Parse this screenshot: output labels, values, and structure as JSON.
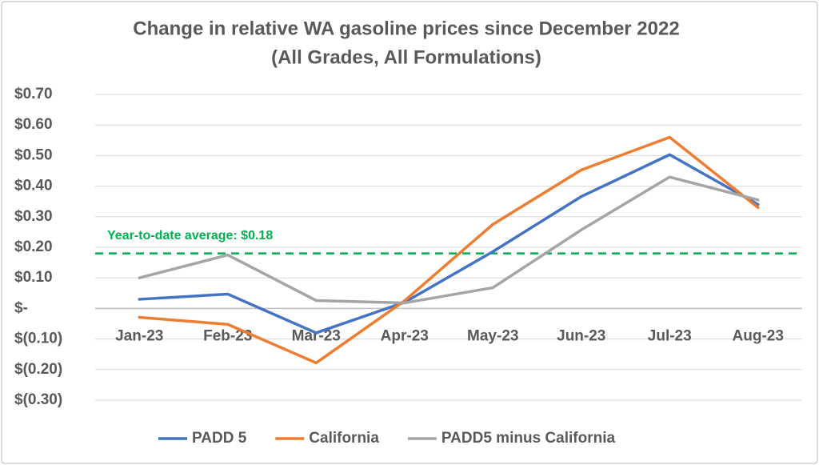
{
  "chart_data": {
    "type": "line",
    "title": "Change in relative WA gasoline prices since December 2022",
    "subtitle": "(All Grades, All Formulations)",
    "categories": [
      "Jan-23",
      "Feb-23",
      "Mar-23",
      "Apr-23",
      "May-23",
      "Jun-23",
      "Jul-23",
      "Aug-23"
    ],
    "series": [
      {
        "name": "PADD 5",
        "color": "#4472c4",
        "values": [
          0.03,
          0.047,
          -0.08,
          0.02,
          0.186,
          0.366,
          0.503,
          0.34
        ]
      },
      {
        "name": "California",
        "color": "#ed7d31",
        "values": [
          -0.029,
          -0.052,
          -0.178,
          0.025,
          0.275,
          0.453,
          0.56,
          0.33
        ]
      },
      {
        "name": "PADD5 minus California",
        "color": "#a5a5a5",
        "values": [
          0.1,
          0.175,
          0.026,
          0.018,
          0.068,
          0.257,
          0.43,
          0.355
        ]
      }
    ],
    "ylim": [
      -0.3,
      0.7
    ],
    "yticks": [
      {
        "value": -0.3,
        "label": "$(0.30)"
      },
      {
        "value": -0.2,
        "label": "$(0.20)"
      },
      {
        "value": -0.1,
        "label": "$(0.10)"
      },
      {
        "value": 0,
        "label": "$-"
      },
      {
        "value": 0.1,
        "label": "$0.10"
      },
      {
        "value": 0.2,
        "label": "$0.20"
      },
      {
        "value": 0.3,
        "label": "$0.30"
      },
      {
        "value": 0.4,
        "label": "$0.40"
      },
      {
        "value": 0.5,
        "label": "$0.50"
      },
      {
        "value": 0.6,
        "label": "$0.60"
      },
      {
        "value": 0.7,
        "label": "$0.70"
      }
    ],
    "grid": true,
    "legend": "bottom",
    "annotations": [
      {
        "text": "Year-to-date average: $0.18",
        "value": 0.18,
        "color": "#00b050"
      }
    ]
  }
}
